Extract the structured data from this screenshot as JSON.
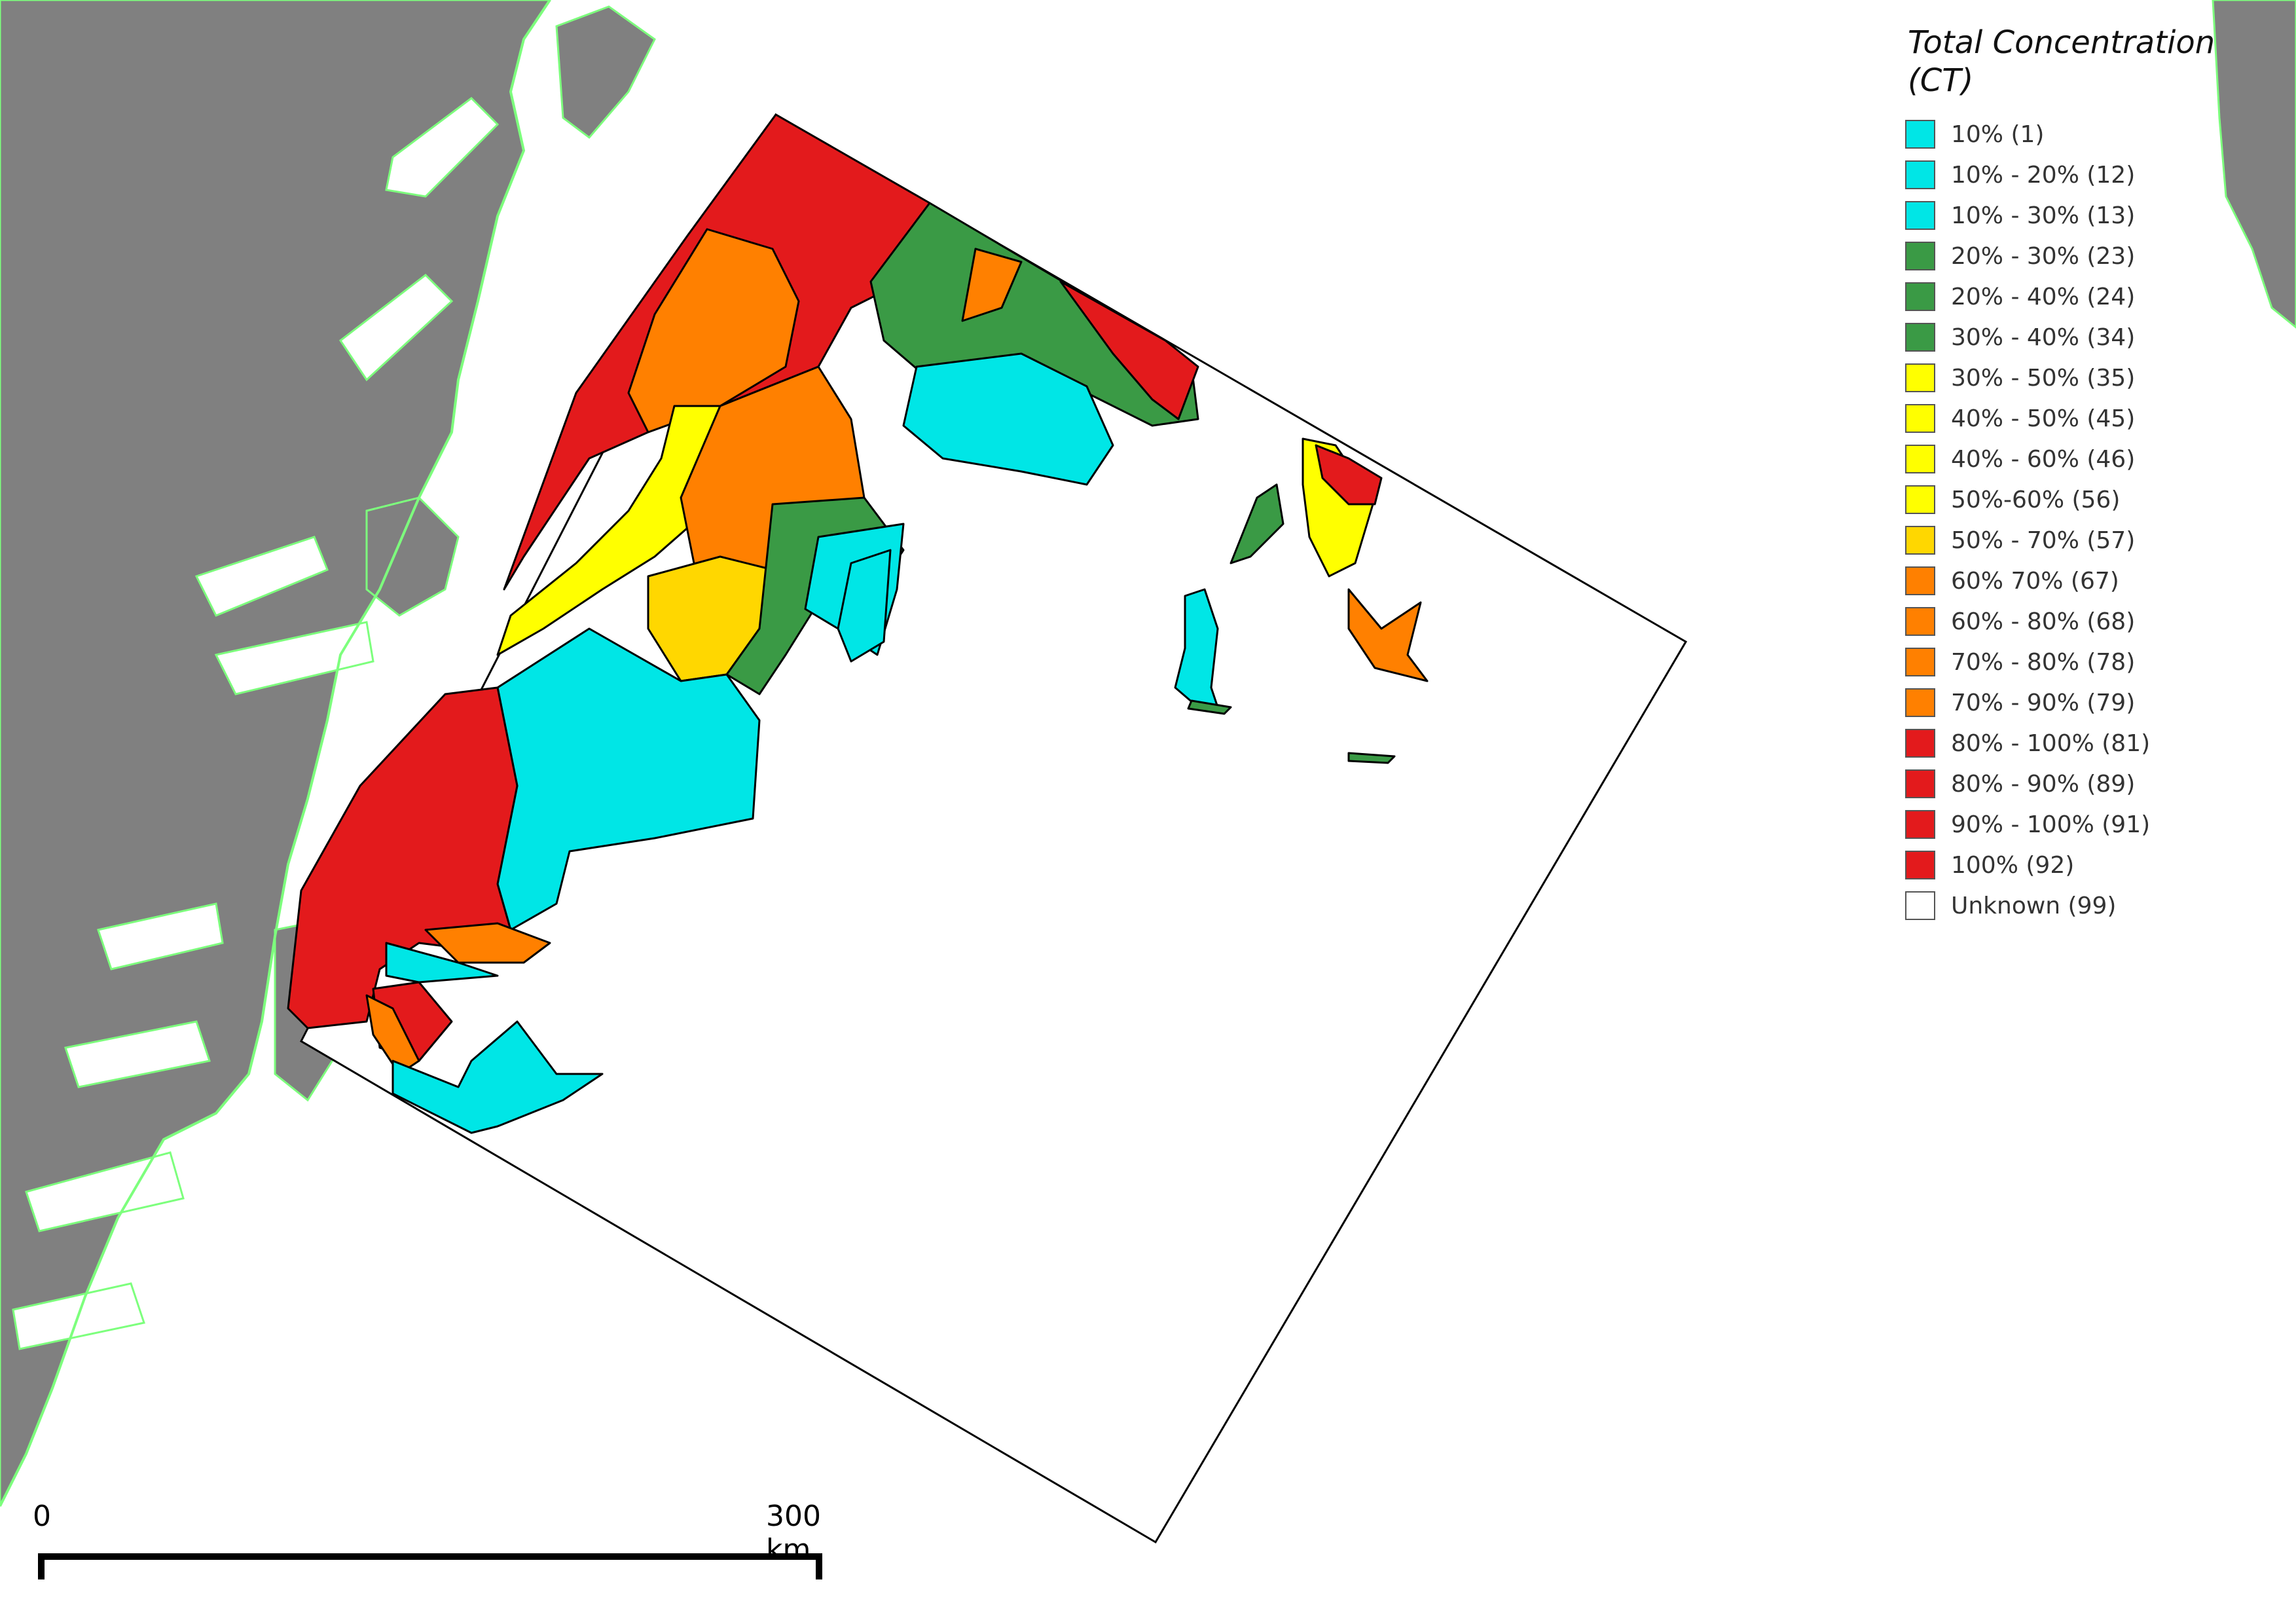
{
  "legend": {
    "title_line1": "Total Concentration",
    "title_line2": "(CT)",
    "items": [
      {
        "label": "10% (1)",
        "color": "#00e6e6"
      },
      {
        "label": "10% - 20% (12)",
        "color": "#00e6e6"
      },
      {
        "label": "10% - 30% (13)",
        "color": "#00e6e6"
      },
      {
        "label": "20% - 30% (23)",
        "color": "#3a9a45"
      },
      {
        "label": "20% - 40% (24)",
        "color": "#3a9a45"
      },
      {
        "label": "30% - 40% (34)",
        "color": "#3a9a45"
      },
      {
        "label": "30% - 50% (35)",
        "color": "#ffff00"
      },
      {
        "label": "40% - 50% (45)",
        "color": "#ffff00"
      },
      {
        "label": "40% - 60% (46)",
        "color": "#ffff00"
      },
      {
        "label": "50%-60% (56)",
        "color": "#ffff00"
      },
      {
        "label": "50% - 70% (57)",
        "color": "#ffd700"
      },
      {
        "label": "60% 70% (67)",
        "color": "#ff8000"
      },
      {
        "label": "60% - 80% (68)",
        "color": "#ff8000"
      },
      {
        "label": "70% - 80% (78)",
        "color": "#ff8000"
      },
      {
        "label": "70% - 90% (79)",
        "color": "#ff8000"
      },
      {
        "label": "80% - 100% (81)",
        "color": "#e31a1c"
      },
      {
        "label": "80% - 90% (89)",
        "color": "#e31a1c"
      },
      {
        "label": "90% - 100% (91)",
        "color": "#e31a1c"
      },
      {
        "label": "100% (92)",
        "color": "#e31a1c"
      },
      {
        "label": "Unknown (99)",
        "color": "#ffffff"
      }
    ]
  },
  "scalebar": {
    "start_label": "0",
    "end_label": "300 km"
  },
  "colors": {
    "land": "#808080",
    "coast_outline": "#7dff7d",
    "ocean": "#ffffff"
  }
}
